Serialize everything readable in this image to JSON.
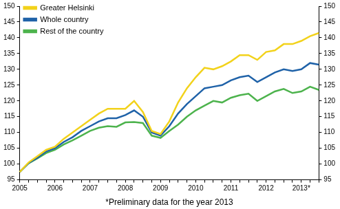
{
  "chart_data": {
    "type": "line",
    "subtitle": "*Preliminary data for the year 2013",
    "categories": [
      "2005",
      null,
      null,
      null,
      "2006",
      null,
      null,
      null,
      "2007",
      null,
      null,
      null,
      "2008",
      null,
      null,
      null,
      "2009",
      null,
      null,
      null,
      "2010",
      null,
      null,
      null,
      "2011",
      null,
      null,
      null,
      "2012",
      null,
      null,
      null,
      "2013*",
      null,
      null
    ],
    "series": [
      {
        "name": "Greater Helsinki",
        "color": "#f2d21b",
        "values": [
          97.5,
          100.5,
          102.5,
          104.5,
          105.5,
          108,
          110,
          112,
          114,
          116,
          117.5,
          117.5,
          117.5,
          120,
          116.5,
          110.5,
          109.5,
          113.5,
          119.5,
          124,
          127.5,
          130.5,
          130,
          131,
          132.5,
          134.5,
          134.5,
          133,
          135.5,
          136,
          138,
          138,
          139,
          140.5,
          141.5
        ]
      },
      {
        "name": "Whole country",
        "color": "#1f62a8",
        "values": [
          97.5,
          100.3,
          102,
          104,
          105,
          107,
          108.5,
          110.5,
          112,
          113.5,
          114.5,
          114.5,
          115.5,
          117,
          115,
          110,
          109,
          112,
          116,
          119,
          121.5,
          124,
          124.5,
          125,
          126.5,
          127.5,
          128,
          126,
          127.5,
          129,
          130,
          129.5,
          130,
          132,
          131.5
        ]
      },
      {
        "name": "Rest of the country",
        "color": "#4db34d",
        "values": [
          97.5,
          100.2,
          101.8,
          103.5,
          104.5,
          106.2,
          107.5,
          109,
          110.5,
          111.5,
          112,
          111.8,
          113.2,
          113.3,
          113,
          109,
          108.3,
          110.5,
          112.5,
          115,
          117,
          118.5,
          120,
          119.5,
          121,
          121.8,
          122.3,
          120,
          121.5,
          123,
          123.8,
          122.5,
          123,
          124.5,
          123.5
        ]
      }
    ],
    "ylim": [
      95,
      150
    ],
    "yticks": [
      95,
      100,
      105,
      110,
      115,
      120,
      125,
      130,
      135,
      140,
      145,
      150
    ],
    "grid": false,
    "legend": "top-left"
  }
}
